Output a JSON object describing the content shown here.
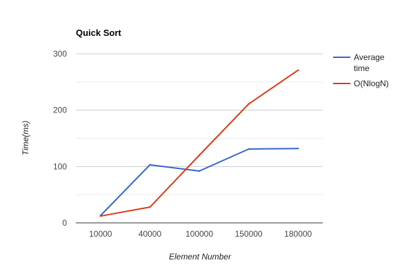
{
  "chart_data": {
    "type": "line",
    "title": "Quick Sort",
    "xlabel": "Element Number",
    "ylabel": "Time(ms)",
    "categories": [
      "10000",
      "40000",
      "100000",
      "150000",
      "180000"
    ],
    "ylim": [
      0,
      300
    ],
    "yticks": [
      "0",
      "100",
      "200",
      "300"
    ],
    "grid": true,
    "legend_position": "right",
    "series": [
      {
        "name": "Average time",
        "legend_lines": [
          "Average",
          "time"
        ],
        "color": "#3366cc",
        "values": [
          13,
          103,
          92,
          131,
          132
        ]
      },
      {
        "name": "O(NlogN)",
        "legend_lines": [
          "O(NlogN)"
        ],
        "color": "#dc3912",
        "values": [
          12,
          28,
          120,
          211,
          271
        ]
      }
    ]
  }
}
